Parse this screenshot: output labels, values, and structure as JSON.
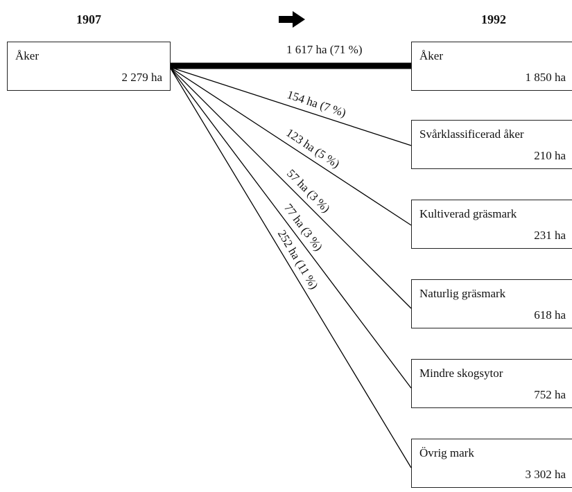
{
  "header": {
    "left": "1907",
    "right": "1992"
  },
  "source": {
    "label": "Åker",
    "value": "2 279 ha"
  },
  "targets": [
    {
      "label": "Åker",
      "value": "1 850 ha"
    },
    {
      "label": "Svårklassificerad åker",
      "value": "210 ha"
    },
    {
      "label": "Kultiverad gräsmark",
      "value": "231 ha"
    },
    {
      "label": "Naturlig gräsmark",
      "value": "618 ha"
    },
    {
      "label": "Mindre skogsytor",
      "value": "752 ha"
    },
    {
      "label": "Övrig mark",
      "value": "3 302 ha"
    }
  ],
  "flows": [
    {
      "label": "1 617 ha  (71 %)"
    },
    {
      "label": "154 ha  (7 %)"
    },
    {
      "label": "123 ha  (5 %)"
    },
    {
      "label": "57 ha  (3 %)"
    },
    {
      "label": "77 ha  (3 %)"
    },
    {
      "label": "252 ha  (11 %)"
    }
  ]
}
